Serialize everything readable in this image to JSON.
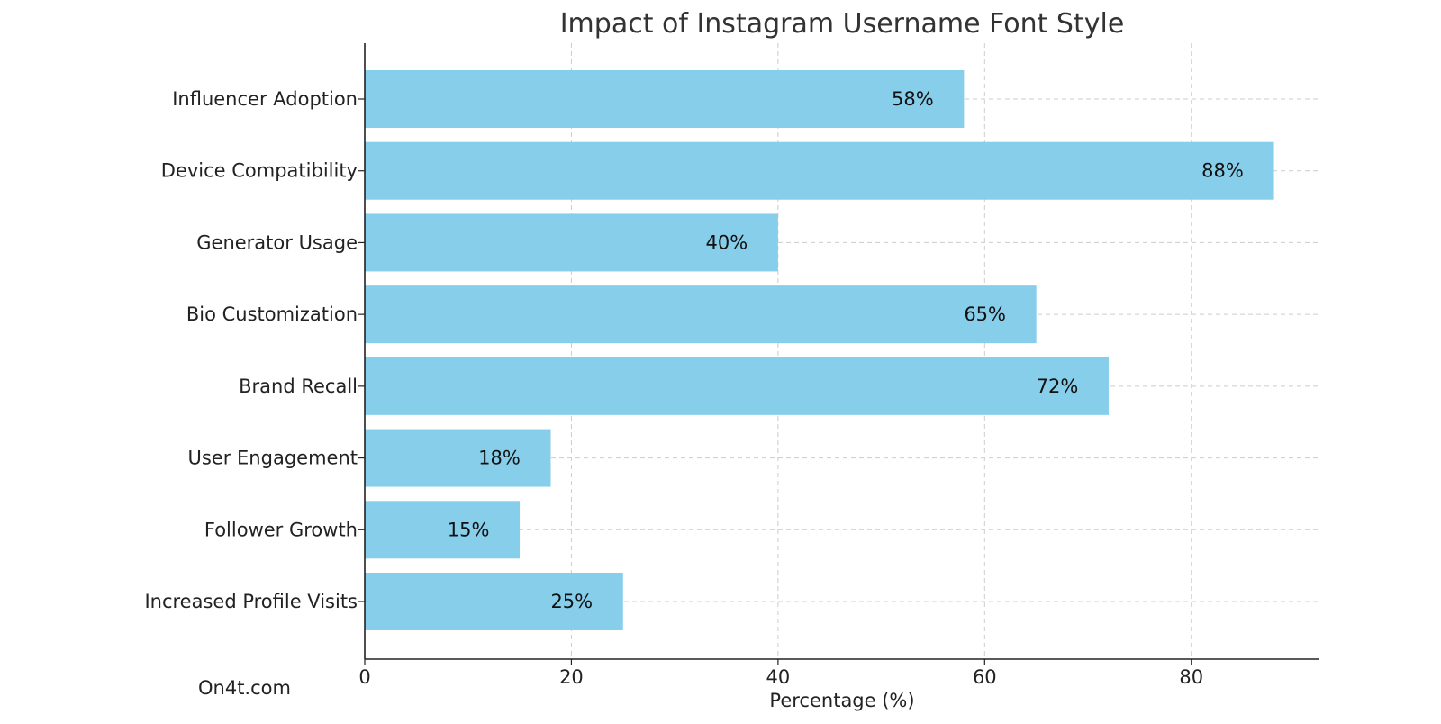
{
  "watermark": "On4t.com",
  "chart_data": {
    "type": "bar",
    "orientation": "horizontal",
    "title": "Impact of Instagram Username Font Style",
    "xlabel": "Percentage (%)",
    "ylabel": "",
    "categories": [
      "Increased Profile Visits",
      "Follower Growth",
      "User Engagement",
      "Brand Recall",
      "Bio Customization",
      "Generator Usage",
      "Device Compatibility",
      "Influencer Adoption"
    ],
    "values": [
      25,
      15,
      18,
      72,
      65,
      40,
      88,
      58
    ],
    "data_labels": [
      "25%",
      "15%",
      "18%",
      "72%",
      "65%",
      "40%",
      "88%",
      "58%"
    ],
    "xlim": [
      0,
      92.4
    ],
    "xticks": [
      0,
      20,
      40,
      60,
      80
    ],
    "grid": true,
    "bar_color": "#87CEEB"
  }
}
